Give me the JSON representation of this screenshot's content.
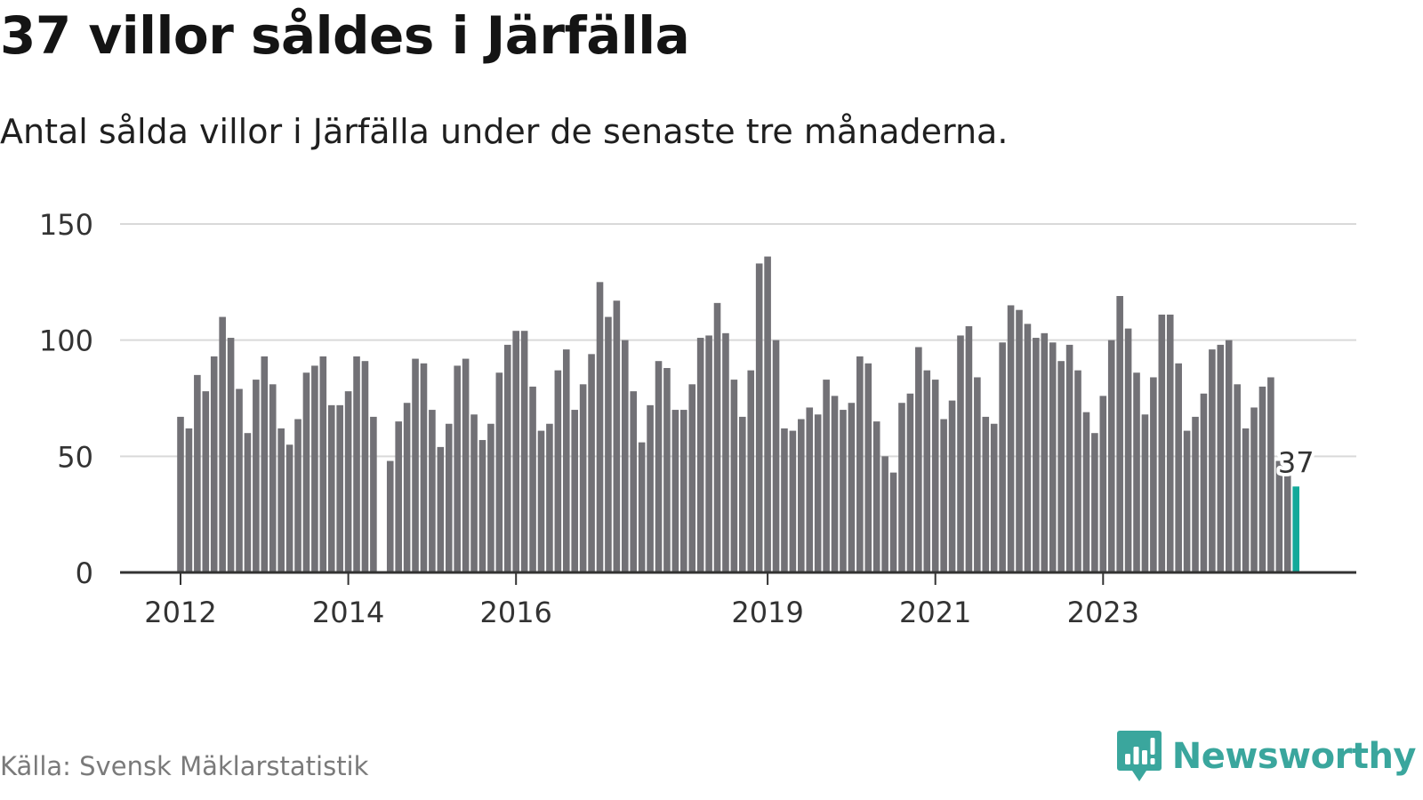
{
  "title": "37 villor såldes i Järfälla",
  "subtitle": "Antal sålda villor i Järfälla under de senaste tre månaderna.",
  "source": "Källa: Svensk Mäklarstatistik",
  "brand": {
    "name": "Newsworthy",
    "icon": "newsworthy-logo-icon"
  },
  "colors": {
    "bar": "#727176",
    "highlight": "#12a99a",
    "grid": "#d9d9d9",
    "axis": "#333333",
    "brand": "#3aa69d"
  },
  "chart_data": {
    "type": "bar",
    "title": "37 villor såldes i Järfälla",
    "subtitle": "Antal sålda villor i Järfälla under de senaste tre månaderna.",
    "xlabel": "",
    "ylabel": "",
    "ylim": [
      0,
      150
    ],
    "yticks": [
      0,
      50,
      100,
      150
    ],
    "grid": true,
    "xtick_labels": [
      {
        "label": "2012",
        "index": 0
      },
      {
        "label": "2014",
        "index": 20
      },
      {
        "label": "2016",
        "index": 40
      },
      {
        "label": "2019",
        "index": 70
      },
      {
        "label": "2021",
        "index": 90
      },
      {
        "label": "2023",
        "index": 110
      }
    ],
    "values": [
      67,
      62,
      85,
      78,
      93,
      110,
      101,
      79,
      60,
      83,
      93,
      81,
      62,
      55,
      66,
      86,
      89,
      93,
      72,
      72,
      78,
      93,
      91,
      67,
      null,
      48,
      65,
      73,
      92,
      90,
      70,
      54,
      64,
      89,
      92,
      68,
      57,
      64,
      86,
      98,
      104,
      104,
      80,
      61,
      64,
      87,
      96,
      70,
      81,
      94,
      125,
      110,
      117,
      100,
      78,
      56,
      72,
      91,
      88,
      70,
      70,
      81,
      101,
      102,
      116,
      103,
      83,
      67,
      87,
      133,
      136,
      100,
      62,
      61,
      66,
      71,
      68,
      83,
      76,
      70,
      73,
      93,
      90,
      65,
      50,
      43,
      73,
      77,
      97,
      87,
      83,
      66,
      74,
      102,
      106,
      84,
      67,
      64,
      99,
      115,
      113,
      107,
      101,
      103,
      99,
      91,
      98,
      87,
      69,
      60,
      76,
      100,
      119,
      105,
      86,
      68,
      84,
      111,
      111,
      90,
      61,
      67,
      77,
      96,
      98,
      100,
      81,
      62,
      71,
      80,
      84,
      48,
      43,
      37
    ],
    "highlight": {
      "label": "37",
      "value": 37
    }
  }
}
